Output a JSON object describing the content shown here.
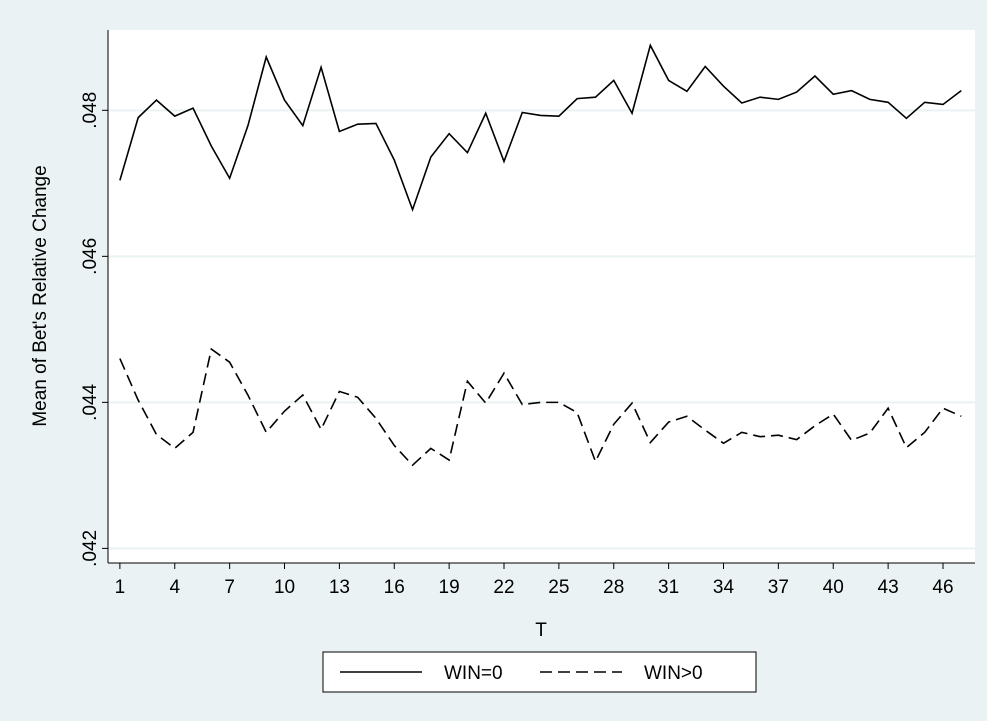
{
  "chart_data": {
    "type": "line",
    "ylabel": "Mean of Bet's Relative Change",
    "xlabel": "T",
    "x": [
      1,
      2,
      3,
      4,
      5,
      6,
      7,
      8,
      9,
      10,
      11,
      12,
      13,
      14,
      15,
      16,
      17,
      18,
      19,
      20,
      21,
      22,
      23,
      24,
      25,
      26,
      27,
      28,
      29,
      30,
      31,
      32,
      33,
      34,
      35,
      36,
      37,
      38,
      39,
      40,
      41,
      42,
      43,
      44,
      45,
      46,
      47
    ],
    "series": [
      {
        "name": "WIN=0",
        "color": "#000000",
        "style": "solid",
        "values": [
          0.04704,
          0.0479,
          0.04814,
          0.04792,
          0.04803,
          0.04751,
          0.04707,
          0.04779,
          0.04873,
          0.04814,
          0.04779,
          0.04859,
          0.04771,
          0.04781,
          0.04782,
          0.04732,
          0.04664,
          0.04736,
          0.04768,
          0.04742,
          0.04796,
          0.0473,
          0.04797,
          0.04793,
          0.04792,
          0.04816,
          0.04818,
          0.04841,
          0.04796,
          0.04889,
          0.04841,
          0.04826,
          0.0486,
          0.04833,
          0.0481,
          0.04818,
          0.04815,
          0.04825,
          0.04847,
          0.04822,
          0.04827,
          0.04815,
          0.04811,
          0.04789,
          0.04811,
          0.04808,
          0.04827
        ]
      },
      {
        "name": "WIN>0",
        "color": "#000000",
        "style": "dashed",
        "values": [
          0.0446,
          0.04403,
          0.04356,
          0.04337,
          0.04359,
          0.04473,
          0.04455,
          0.0441,
          0.04359,
          0.04388,
          0.0441,
          0.04363,
          0.04415,
          0.04407,
          0.04378,
          0.04341,
          0.04314,
          0.04337,
          0.04321,
          0.04429,
          0.04399,
          0.0444,
          0.04397,
          0.044,
          0.044,
          0.04386,
          0.04319,
          0.0437,
          0.04399,
          0.04345,
          0.04373,
          0.04381,
          0.04362,
          0.04344,
          0.04359,
          0.04353,
          0.04355,
          0.04349,
          0.04368,
          0.04384,
          0.04348,
          0.04358,
          0.04392,
          0.04338,
          0.04359,
          0.04392,
          0.04381
        ]
      }
    ],
    "xlim": [
      0.35,
      47.75
    ],
    "xticks": [
      1,
      4,
      7,
      10,
      13,
      16,
      19,
      22,
      25,
      28,
      31,
      34,
      37,
      40,
      43,
      46
    ],
    "ylim": [
      0.0418,
      0.0491
    ],
    "yticks": [
      {
        "value": 0.042,
        "label": ".042"
      },
      {
        "value": 0.044,
        "label": ".044"
      },
      {
        "value": 0.046,
        "label": ".046"
      },
      {
        "value": 0.048,
        "label": ".048"
      }
    ],
    "grid": true,
    "legend": "bottom"
  }
}
